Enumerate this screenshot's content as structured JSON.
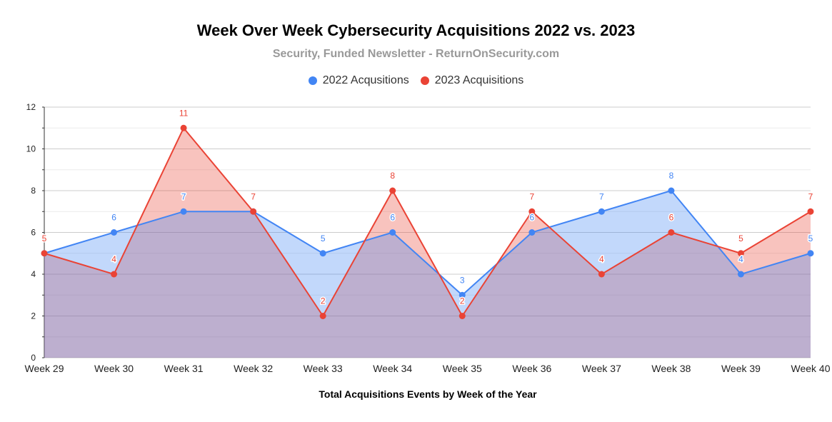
{
  "chart_data": {
    "type": "area",
    "title": "Week Over Week Cybersecurity Acquisitions 2022 vs. 2023",
    "subtitle": "Security, Funded Newsletter - ReturnOnSecurity.com",
    "xlabel": "Total Acquisitions Events by Week of the Year",
    "ylabel": "",
    "categories": [
      "Week 29",
      "Week 30",
      "Week 31",
      "Week 32",
      "Week 33",
      "Week 34",
      "Week 35",
      "Week 36",
      "Week 37",
      "Week 38",
      "Week 39",
      "Week 40"
    ],
    "ylim": [
      0,
      12
    ],
    "yticks": [
      0,
      2,
      4,
      6,
      8,
      10,
      12
    ],
    "grid": true,
    "legend_position": "top",
    "series": [
      {
        "name": "2022 Acqusitions",
        "color": "#4285f4",
        "values": [
          5,
          6,
          7,
          7,
          5,
          6,
          3,
          6,
          7,
          8,
          4,
          5
        ]
      },
      {
        "name": "2023 Acquisitions",
        "color": "#ea4335",
        "values": [
          5,
          4,
          11,
          7,
          2,
          8,
          2,
          7,
          4,
          6,
          5,
          7
        ]
      }
    ],
    "data_labels": true
  }
}
